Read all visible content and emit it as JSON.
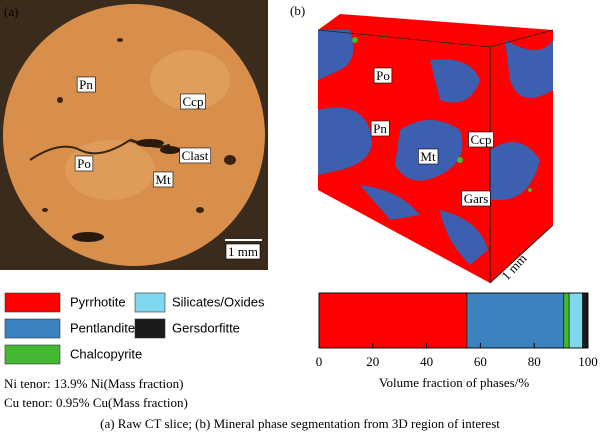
{
  "panel_a": {
    "label": "(a)",
    "markers": [
      "Pn",
      "Ccp",
      "Clast",
      "Po",
      "Mt"
    ],
    "scale": "1 mm"
  },
  "panel_b": {
    "label": "(b)",
    "markers": [
      "Po",
      "Pn",
      "Ccp",
      "Mt",
      "Gars"
    ],
    "scale": "1 mm"
  },
  "tenor": [
    "Ni tenor: 13.9% Ni(Mass fraction)",
    "Cu tenor: 0.95% Cu(Mass fraction)"
  ],
  "caption": "(a) Raw CT slice; (b) Mineral phase segmentation from 3D region of interest",
  "chart_data": {
    "type": "bar",
    "orientation": "horizontal",
    "stacked": true,
    "xlabel": "Volume fraction of phases/%",
    "xlim": [
      0,
      100
    ],
    "xticks": [
      0,
      20,
      40,
      60,
      80,
      100
    ],
    "series": [
      {
        "name": "Pyrrhotite",
        "color": "#ff0000",
        "values": [
          55
        ]
      },
      {
        "name": "Pentlandite",
        "color": "#3a82c0",
        "values": [
          36
        ]
      },
      {
        "name": "Chalcopyrite",
        "color": "#44b833",
        "values": [
          2
        ]
      },
      {
        "name": "Silicates/Oxides",
        "color": "#80d8f0",
        "values": [
          5
        ]
      },
      {
        "name": "Gersdorfitte",
        "color": "#1a1a1a",
        "values": [
          2
        ]
      }
    ]
  }
}
